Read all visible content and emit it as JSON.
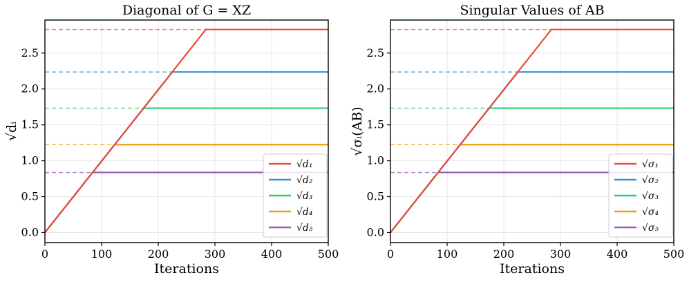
{
  "chart_data": [
    {
      "type": "line",
      "title": "Diagonal of G = XZ",
      "xlabel": "Iterations",
      "ylabel": "√dᵢ",
      "xlim": [
        0,
        500
      ],
      "ylim": [
        -0.14,
        2.96
      ],
      "xticks": [
        0,
        100,
        200,
        300,
        400,
        500
      ],
      "yticks": [
        0.0,
        0.5,
        1.0,
        1.5,
        2.0,
        2.5
      ],
      "xtick_labels": [
        "0",
        "100",
        "200",
        "300",
        "400",
        "500"
      ],
      "ytick_labels": [
        "0.0",
        "0.5",
        "1.0",
        "1.5",
        "2.0",
        "2.5"
      ],
      "grid": true,
      "legend_position": "lower-right",
      "targets": [
        2.828,
        2.236,
        1.732,
        1.225,
        0.837
      ],
      "series": [
        {
          "name": "√d₁",
          "color": "#e74c3c",
          "x": [
            0,
            284,
            500
          ],
          "y": [
            0,
            2.828,
            2.828
          ]
        },
        {
          "name": "√d₂",
          "color": "#3c8fd0",
          "x": [
            0,
            225,
            500
          ],
          "y": [
            0,
            2.236,
            2.236
          ]
        },
        {
          "name": "√d₃",
          "color": "#2ecc71",
          "x": [
            0,
            174,
            500
          ],
          "y": [
            0,
            1.732,
            1.732
          ]
        },
        {
          "name": "√d₄",
          "color": "#f39c12",
          "x": [
            0,
            123,
            500
          ],
          "y": [
            0,
            1.225,
            1.225
          ]
        },
        {
          "name": "√d₅",
          "color": "#9b59b6",
          "x": [
            0,
            84,
            500
          ],
          "y": [
            0,
            0.837,
            0.837
          ]
        }
      ]
    },
    {
      "type": "line",
      "title": "Singular Values of AB",
      "xlabel": "Iterations",
      "ylabel": "√σᵢ(AB)",
      "xlim": [
        0,
        500
      ],
      "ylim": [
        -0.14,
        2.96
      ],
      "xticks": [
        0,
        100,
        200,
        300,
        400,
        500
      ],
      "yticks": [
        0.0,
        0.5,
        1.0,
        1.5,
        2.0,
        2.5
      ],
      "xtick_labels": [
        "0",
        "100",
        "200",
        "300",
        "400",
        "500"
      ],
      "ytick_labels": [
        "0.0",
        "0.5",
        "1.0",
        "1.5",
        "2.0",
        "2.5"
      ],
      "grid": true,
      "legend_position": "lower-right",
      "targets": [
        2.828,
        2.236,
        1.732,
        1.225,
        0.837
      ],
      "series": [
        {
          "name": "√σ₁",
          "color": "#e74c3c",
          "x": [
            0,
            284,
            500
          ],
          "y": [
            0,
            2.828,
            2.828
          ]
        },
        {
          "name": "√σ₂",
          "color": "#3c8fd0",
          "x": [
            0,
            225,
            500
          ],
          "y": [
            0,
            2.236,
            2.236
          ]
        },
        {
          "name": "√σ₃",
          "color": "#2ecc71",
          "x": [
            0,
            174,
            500
          ],
          "y": [
            0,
            1.732,
            1.732
          ]
        },
        {
          "name": "√σ₄",
          "color": "#f39c12",
          "x": [
            0,
            123,
            500
          ],
          "y": [
            0,
            1.225,
            1.225
          ]
        },
        {
          "name": "√σ₅",
          "color": "#9b59b6",
          "x": [
            0,
            84,
            500
          ],
          "y": [
            0,
            0.837,
            0.837
          ]
        }
      ]
    }
  ]
}
